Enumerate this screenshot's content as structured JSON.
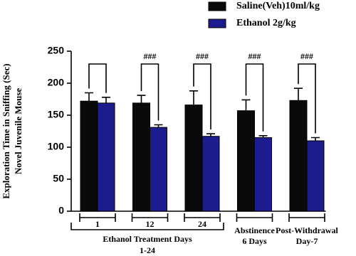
{
  "chart_data": {
    "type": "bar",
    "ylabel": [
      "Exploration Time in Sniffing (Sec)",
      "Novel Juvenile Mouse"
    ],
    "categories": [
      [
        "1"
      ],
      [
        "12"
      ],
      [
        "24"
      ],
      [
        "Abstinence",
        "6 Days"
      ],
      [
        "Post-Withdrawal",
        "Day-7"
      ]
    ],
    "group_label": [
      "Ethanol Treatment Days",
      "1-24"
    ],
    "series": [
      {
        "name": "Saline(Veh)10ml/kg",
        "color": "#0a0a0a",
        "values": [
          172,
          169,
          166,
          157,
          173
        ],
        "errors": [
          13,
          12,
          22,
          17,
          19
        ]
      },
      {
        "name": "Ethanol 2g/kg",
        "color": "#1c1c8e",
        "values": [
          169,
          131,
          117,
          115,
          110
        ],
        "errors": [
          9,
          4,
          4,
          3,
          5
        ]
      }
    ],
    "significance": [
      null,
      "###",
      "###",
      "###",
      "###"
    ],
    "ylim": [
      0,
      250
    ],
    "yticks": [
      0,
      50,
      100,
      150,
      200,
      250
    ],
    "grid": false
  }
}
